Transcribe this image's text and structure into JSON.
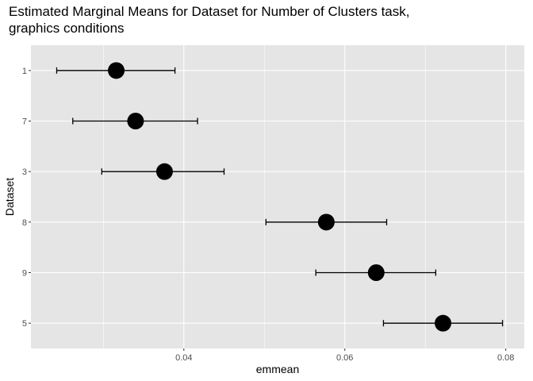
{
  "chart_data": {
    "type": "scatter",
    "title": "Estimated Marginal Means for Dataset for Number of Clusters task,\ngraphics conditions",
    "xlabel": "emmean",
    "ylabel": "Dataset",
    "categories": [
      "1",
      "7",
      "3",
      "8",
      "9",
      "5"
    ],
    "series": [
      {
        "values": [
          0.0316,
          0.034,
          0.0376,
          0.0577,
          0.0639,
          0.0722
        ],
        "lower": [
          0.0242,
          0.0262,
          0.0298,
          0.0502,
          0.0564,
          0.0648
        ],
        "upper": [
          0.0389,
          0.0417,
          0.045,
          0.0652,
          0.0713,
          0.0796
        ]
      }
    ],
    "xlim": [
      0.021,
      0.0823
    ],
    "xticks": [
      "0.04",
      "0.06",
      "0.08"
    ],
    "xtick_values": [
      0.04,
      0.06,
      0.08
    ],
    "x_minor": [
      0.03,
      0.05,
      0.07
    ],
    "grid": true,
    "legend": "none",
    "colors": {
      "panel": "#e5e5e5",
      "grid": "#ffffff",
      "point": "#000000",
      "errorbar": "#000000"
    }
  }
}
